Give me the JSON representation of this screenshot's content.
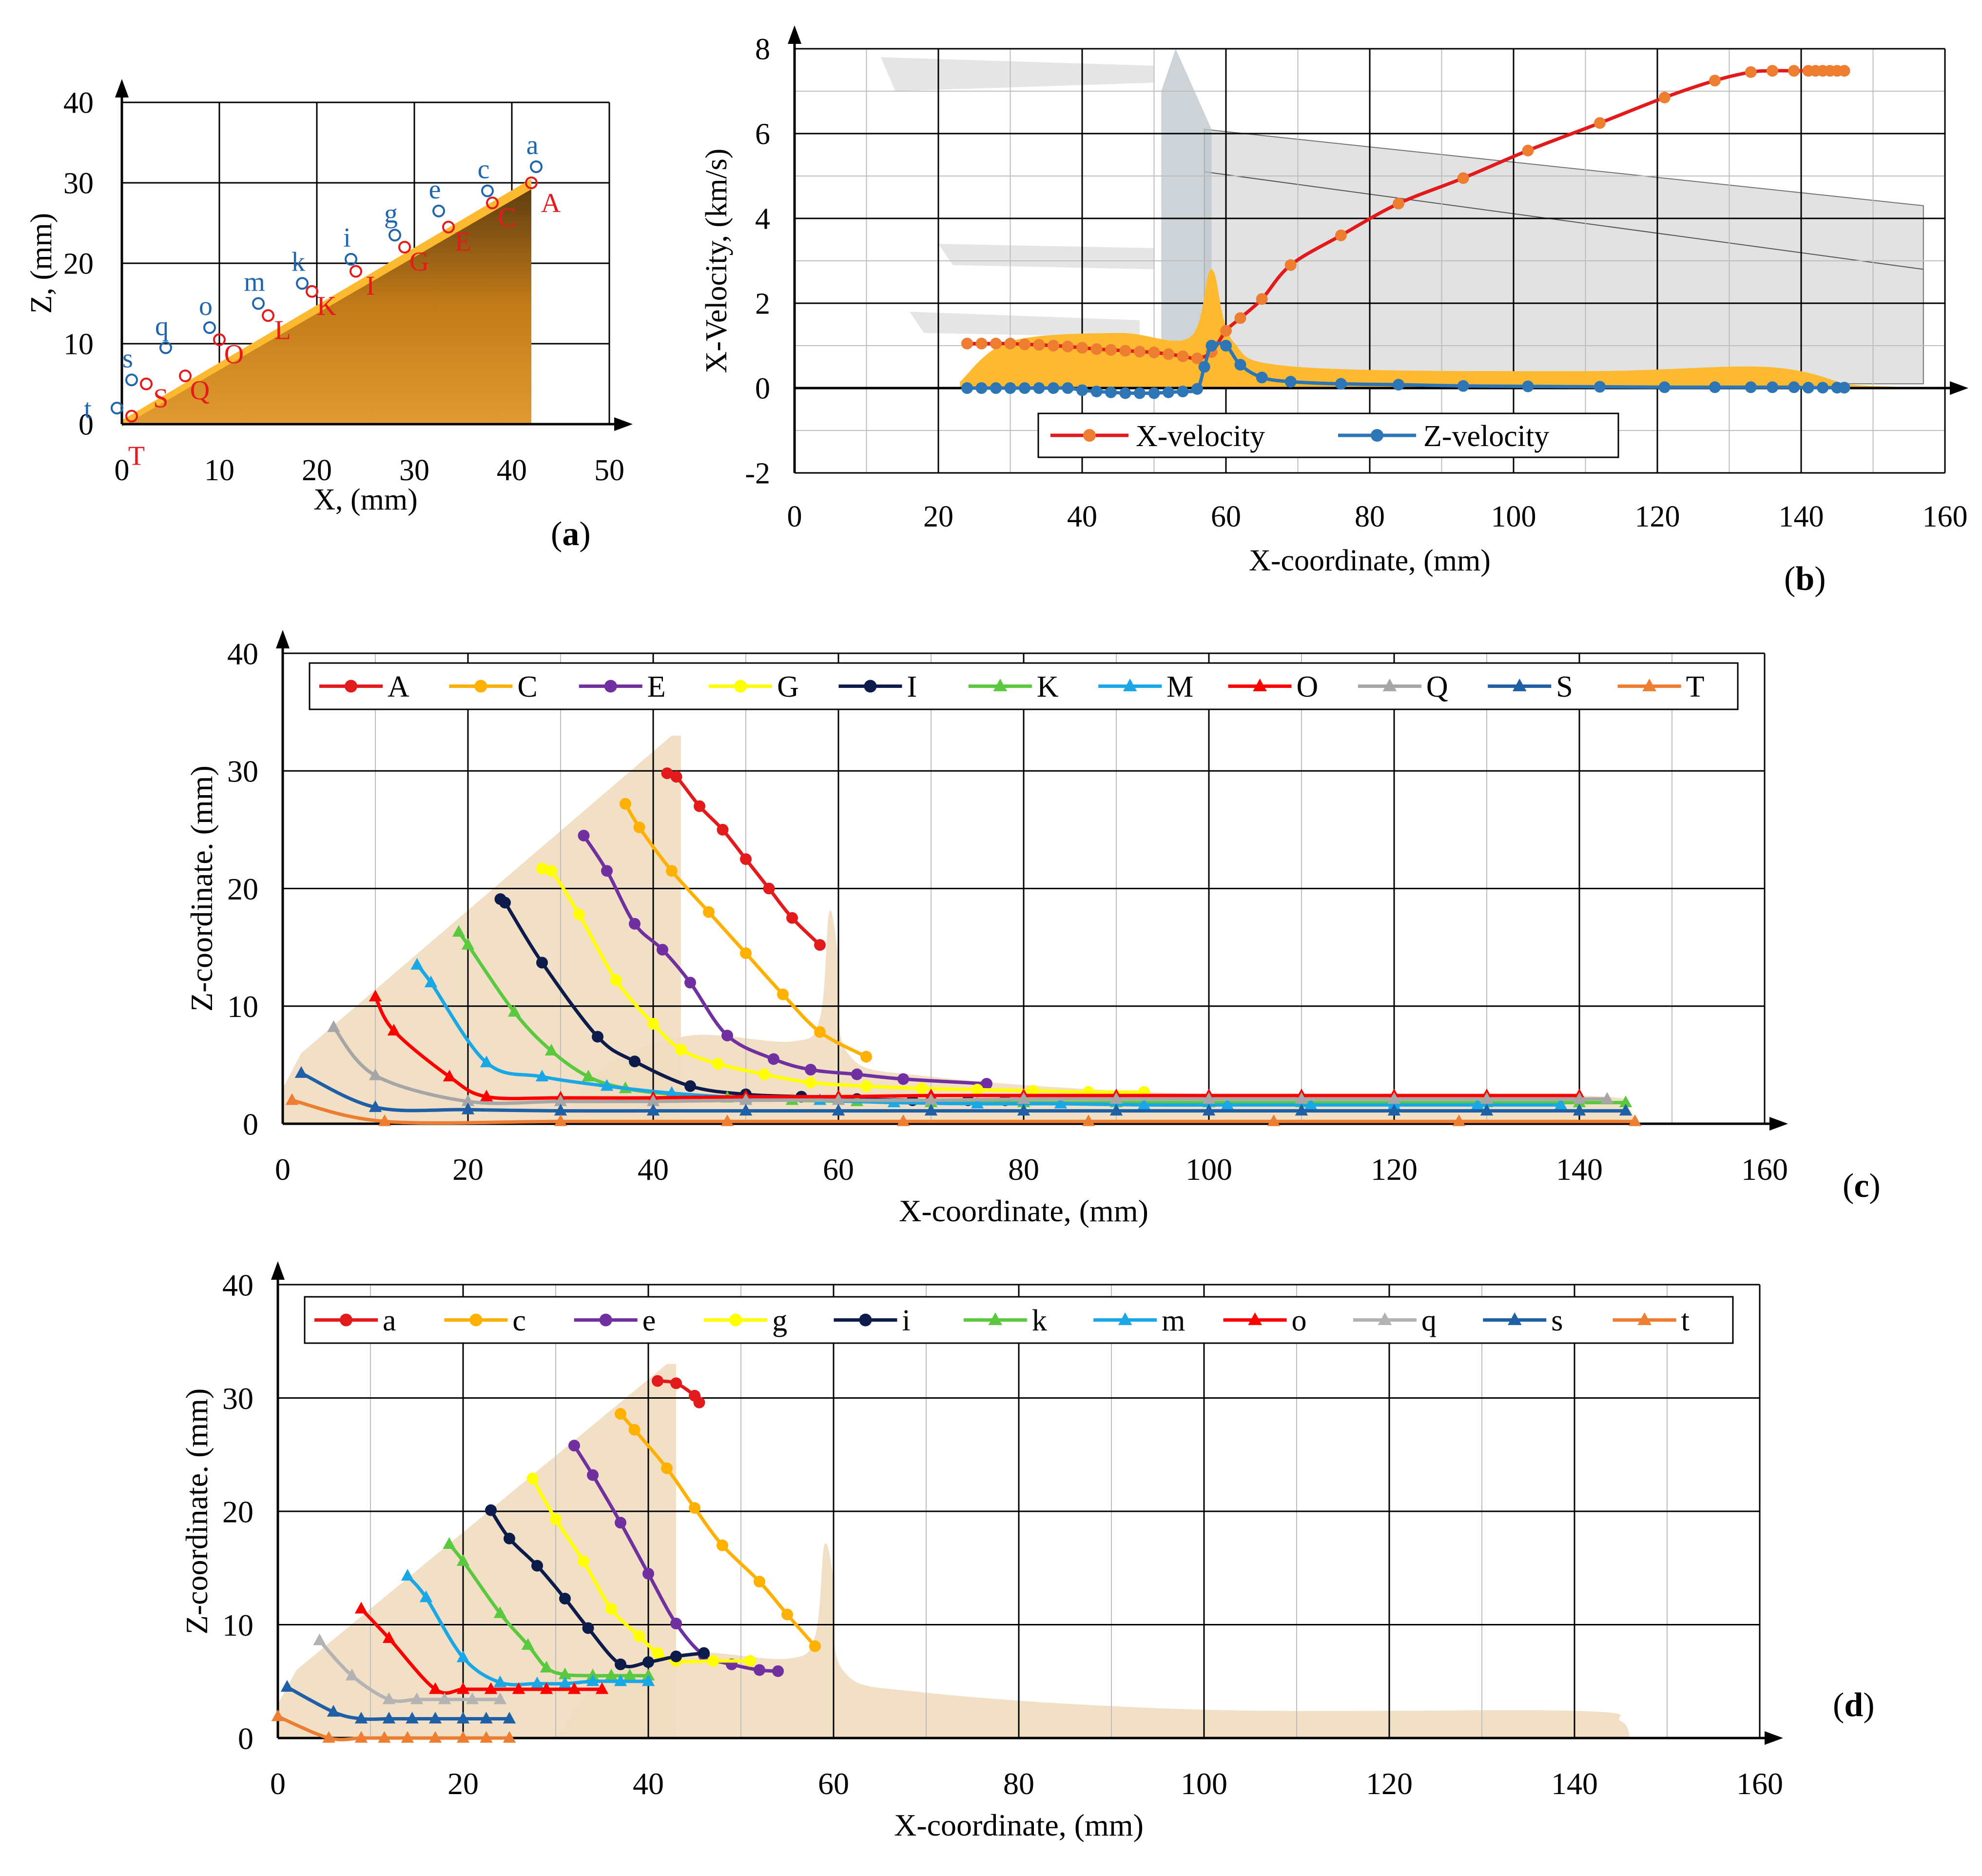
{
  "colors": {
    "grid_major": "#000000",
    "grid_minor": "#bdbdbd",
    "shape_fill": "#d68a18",
    "shape_light": "#f0dcc0",
    "ghost": "#d4d4d4",
    "orange_band": "#fdb930",
    "label_red": "#e41a1c",
    "label_blue": "#2166ac"
  },
  "panel_labels": {
    "a": "a",
    "b": "b",
    "c": "c",
    "d": "d"
  },
  "chart_data": [
    {
      "id": "a",
      "type": "scatter",
      "xlabel": "X, (mm)",
      "ylabel": "Z, (mm)",
      "xlim": [
        0,
        50
      ],
      "ylim": [
        0,
        40
      ],
      "xticks": [
        "0",
        "10",
        "20",
        "30",
        "40",
        "50"
      ],
      "yticks": [
        "0",
        "10",
        "20",
        "30",
        "40"
      ],
      "outline": {
        "x": [
          0,
          42,
          42,
          0
        ],
        "z": [
          0,
          30,
          0,
          0
        ]
      },
      "upper_points": [
        {
          "label": "a",
          "x": 42.5,
          "z": 32
        },
        {
          "label": "c",
          "x": 37.5,
          "z": 29
        },
        {
          "label": "e",
          "x": 32.5,
          "z": 26.5
        },
        {
          "label": "g",
          "x": 28,
          "z": 23.5
        },
        {
          "label": "i",
          "x": 23.5,
          "z": 20.5
        },
        {
          "label": "k",
          "x": 18.5,
          "z": 17.5
        },
        {
          "label": "m",
          "x": 14,
          "z": 15
        },
        {
          "label": "o",
          "x": 9,
          "z": 12
        },
        {
          "label": "q",
          "x": 4.5,
          "z": 9.5
        },
        {
          "label": "s",
          "x": 1,
          "z": 5.5
        },
        {
          "label": "t",
          "x": -0.5,
          "z": 2
        }
      ],
      "lower_points": [
        {
          "label": "A",
          "x": 42,
          "z": 30
        },
        {
          "label": "C",
          "x": 38,
          "z": 27.5
        },
        {
          "label": "E",
          "x": 33.5,
          "z": 24.5
        },
        {
          "label": "G",
          "x": 29,
          "z": 22
        },
        {
          "label": "I",
          "x": 24,
          "z": 19
        },
        {
          "label": "K",
          "x": 19.5,
          "z": 16.5
        },
        {
          "label": "L",
          "x": 15,
          "z": 13.5
        },
        {
          "label": "O",
          "x": 10,
          "z": 10.5
        },
        {
          "label": "Q",
          "x": 6.5,
          "z": 6
        },
        {
          "label": "S",
          "x": 2.5,
          "z": 5
        },
        {
          "label": "T",
          "x": 1,
          "z": 1
        }
      ]
    },
    {
      "id": "b",
      "type": "line",
      "xlabel": "X-coordinate, (mm)",
      "ylabel": "X-Velocity, (km/s)",
      "xlim": [
        0,
        160
      ],
      "ylim": [
        -2,
        8
      ],
      "xticks": [
        "0",
        "20",
        "40",
        "60",
        "80",
        "100",
        "120",
        "140",
        "160"
      ],
      "yticks": [
        "-2",
        "0",
        "2",
        "4",
        "6",
        "8"
      ],
      "series": [
        {
          "name": "X-velocity",
          "color": "#e31a1c",
          "marker_color": "#ed7d31",
          "x": [
            24,
            26,
            28,
            30,
            32,
            34,
            36,
            38,
            40,
            42,
            44,
            46,
            48,
            50,
            52,
            54,
            56,
            58,
            60,
            62,
            65,
            69,
            76,
            84,
            93,
            102,
            112,
            121,
            128,
            133,
            136,
            139,
            141,
            142,
            143,
            144,
            145,
            146
          ],
          "y": [
            1.05,
            1.05,
            1.05,
            1.05,
            1.03,
            1.02,
            1.0,
            0.98,
            0.95,
            0.92,
            0.9,
            0.88,
            0.86,
            0.84,
            0.8,
            0.75,
            0.7,
            0.85,
            1.35,
            1.65,
            2.1,
            2.9,
            3.6,
            4.35,
            4.95,
            5.6,
            6.25,
            6.85,
            7.25,
            7.45,
            7.48,
            7.48,
            7.48,
            7.48,
            7.48,
            7.48,
            7.48,
            7.48
          ]
        },
        {
          "name": "Z-velocity",
          "color": "#2e75b6",
          "marker_color": "#2e75b6",
          "x": [
            24,
            26,
            28,
            30,
            32,
            34,
            36,
            38,
            40,
            42,
            44,
            46,
            48,
            50,
            52,
            54,
            56,
            57,
            58,
            60,
            62,
            65,
            69,
            76,
            84,
            93,
            102,
            112,
            121,
            128,
            133,
            136,
            139,
            141,
            143,
            145,
            146
          ],
          "y": [
            0.0,
            0.0,
            0.0,
            0.0,
            0.0,
            0.0,
            0.0,
            0.0,
            -0.05,
            -0.08,
            -0.1,
            -0.12,
            -0.12,
            -0.12,
            -0.1,
            -0.08,
            -0.02,
            0.5,
            1.0,
            1.0,
            0.55,
            0.25,
            0.15,
            0.1,
            0.08,
            0.05,
            0.04,
            0.03,
            0.02,
            0.02,
            0.02,
            0.02,
            0.02,
            0.01,
            0.01,
            0.01,
            0.01
          ]
        }
      ]
    },
    {
      "id": "c",
      "type": "line",
      "xlabel": "X-coordinate, (mm)",
      "ylabel": "Z-coordinate. (mm)",
      "xlim": [
        0,
        160
      ],
      "ylim": [
        0,
        40
      ],
      "xticks": [
        "0",
        "20",
        "40",
        "60",
        "80",
        "100",
        "120",
        "140",
        "160"
      ],
      "yticks": [
        "0",
        "10",
        "20",
        "30",
        "40"
      ],
      "series": [
        {
          "name": "A",
          "color": "#e31a1c",
          "marker": "circle",
          "x": [
            41.5,
            42.5,
            45,
            47.5,
            50,
            52.5,
            55,
            58
          ],
          "y": [
            29.8,
            29.5,
            27,
            25,
            22.5,
            20,
            17.5,
            15.2
          ]
        },
        {
          "name": "C",
          "color": "#ffb000",
          "marker": "circle",
          "x": [
            37,
            38.5,
            42,
            46,
            50,
            54,
            58,
            63
          ],
          "y": [
            27.2,
            25.2,
            21.5,
            18,
            14.5,
            11,
            7.8,
            5.7
          ]
        },
        {
          "name": "E",
          "color": "#7030a0",
          "marker": "circle",
          "x": [
            32.5,
            35,
            38,
            41,
            44,
            48,
            53,
            57,
            62,
            67,
            76
          ],
          "y": [
            24.5,
            21.5,
            17,
            14.8,
            12,
            7.5,
            5.5,
            4.6,
            4.2,
            3.8,
            3.4
          ]
        },
        {
          "name": "G",
          "color": "#ffff00",
          "marker": "circle",
          "x": [
            28,
            29,
            32,
            36,
            40,
            43,
            47,
            52,
            57,
            63,
            69,
            75,
            81,
            87,
            93
          ],
          "y": [
            21.7,
            21.5,
            17.8,
            12.2,
            8.5,
            6.3,
            5.1,
            4.2,
            3.5,
            3.2,
            3.0,
            2.9,
            2.8,
            2.7,
            2.7
          ]
        },
        {
          "name": "I",
          "color": "#0d1b4b",
          "marker": "circle",
          "x": [
            23.5,
            24,
            28,
            34,
            38,
            44,
            50,
            56,
            62,
            68,
            74,
            78
          ],
          "y": [
            19.1,
            18.8,
            13.7,
            7.4,
            5.3,
            3.2,
            2.5,
            2.3,
            2.1,
            2.0,
            2.0,
            2.0
          ]
        },
        {
          "name": "K",
          "color": "#5bc940",
          "marker": "triangle",
          "x": [
            19,
            20,
            25,
            29,
            33,
            37,
            42,
            48,
            55,
            62,
            70,
            80,
            90,
            100,
            110,
            120,
            130,
            140,
            145
          ],
          "y": [
            16.3,
            15.2,
            9.5,
            6.2,
            4.0,
            3.0,
            2.5,
            2.2,
            2.0,
            1.9,
            1.8,
            1.8,
            1.8,
            1.8,
            1.8,
            1.8,
            1.8,
            1.8,
            1.8
          ]
        },
        {
          "name": "M",
          "color": "#1aa7e6",
          "marker": "triangle",
          "x": [
            14.5,
            16,
            22,
            28,
            35,
            42,
            50,
            58,
            66,
            75,
            84,
            93,
            102,
            111,
            120,
            129,
            138
          ],
          "y": [
            13.5,
            12,
            5.2,
            4.0,
            3.2,
            2.6,
            2.2,
            2.0,
            1.8,
            1.7,
            1.7,
            1.6,
            1.6,
            1.6,
            1.6,
            1.6,
            1.6
          ]
        },
        {
          "name": "O",
          "color": "#ff0000",
          "marker": "triangle",
          "x": [
            10,
            12,
            18,
            22,
            30,
            40,
            50,
            60,
            70,
            80,
            90,
            100,
            110,
            120,
            130,
            140
          ],
          "y": [
            10.8,
            7.9,
            4.0,
            2.3,
            2.2,
            2.2,
            2.3,
            2.3,
            2.4,
            2.4,
            2.4,
            2.4,
            2.4,
            2.4,
            2.4,
            2.4
          ]
        },
        {
          "name": "Q",
          "color": "#a6a6a6",
          "marker": "triangle",
          "x": [
            5.5,
            10,
            20,
            30,
            40,
            50,
            60,
            70,
            80,
            90,
            100,
            110,
            120,
            130,
            140,
            143
          ],
          "y": [
            8.2,
            4.1,
            1.9,
            1.9,
            1.9,
            2.0,
            2.0,
            2.0,
            2.1,
            2.1,
            2.1,
            2.1,
            2.1,
            2.1,
            2.1,
            2.1
          ]
        },
        {
          "name": "S",
          "color": "#1f5fa6",
          "marker": "triangle",
          "x": [
            2,
            10,
            20,
            30,
            40,
            50,
            60,
            70,
            80,
            90,
            100,
            110,
            120,
            130,
            140,
            145
          ],
          "y": [
            4.3,
            1.4,
            1.2,
            1.1,
            1.1,
            1.1,
            1.1,
            1.1,
            1.1,
            1.1,
            1.1,
            1.1,
            1.1,
            1.1,
            1.1,
            1.1
          ]
        },
        {
          "name": "T",
          "color": "#ed7d31",
          "marker": "triangle",
          "x": [
            1,
            11,
            30,
            48,
            67,
            87,
            107,
            127,
            146
          ],
          "y": [
            2.0,
            0.2,
            0.2,
            0.2,
            0.2,
            0.2,
            0.2,
            0.2,
            0.2
          ]
        }
      ]
    },
    {
      "id": "d",
      "type": "line",
      "xlabel": "X-coordinate, (mm)",
      "ylabel": "Z-coordinate. (mm)",
      "xlim": [
        0,
        160
      ],
      "ylim": [
        0,
        40
      ],
      "xticks": [
        "0",
        "20",
        "40",
        "60",
        "80",
        "100",
        "120",
        "140",
        "160"
      ],
      "yticks": [
        "0",
        "10",
        "20",
        "30",
        "40"
      ],
      "series": [
        {
          "name": "a",
          "color": "#e31a1c",
          "marker": "circle",
          "x": [
            41,
            43,
            45,
            45.5
          ],
          "y": [
            31.5,
            31.3,
            30.2,
            29.6
          ]
        },
        {
          "name": "c",
          "color": "#ffb000",
          "marker": "circle",
          "x": [
            37,
            38.5,
            42,
            45,
            48,
            52,
            55,
            58
          ],
          "y": [
            28.6,
            27.2,
            23.8,
            20.3,
            17.0,
            13.8,
            10.9,
            8.1
          ]
        },
        {
          "name": "e",
          "color": "#7030a0",
          "marker": "circle",
          "x": [
            32,
            34,
            37,
            40,
            43,
            46,
            49,
            52,
            54
          ],
          "y": [
            25.8,
            23.2,
            19.0,
            14.5,
            10.1,
            7.3,
            6.5,
            6.0,
            5.9
          ]
        },
        {
          "name": "g",
          "color": "#ffff00",
          "marker": "circle",
          "x": [
            27.5,
            30,
            33,
            36,
            39,
            41,
            43,
            47,
            51
          ],
          "y": [
            22.9,
            19.3,
            15.6,
            11.4,
            9.0,
            7.5,
            6.8,
            6.8,
            6.8
          ]
        },
        {
          "name": "i",
          "color": "#0d1b4b",
          "marker": "circle",
          "x": [
            23,
            25,
            28,
            31,
            33.5,
            37,
            40,
            43,
            46
          ],
          "y": [
            20.1,
            17.6,
            15.2,
            12.3,
            9.7,
            6.5,
            6.7,
            7.2,
            7.5
          ]
        },
        {
          "name": "k",
          "color": "#5bc940",
          "marker": "triangle",
          "x": [
            18.5,
            20,
            24,
            27,
            29,
            31,
            34,
            36,
            38,
            40
          ],
          "y": [
            17.1,
            15.6,
            11.0,
            8.2,
            6.2,
            5.6,
            5.5,
            5.5,
            5.5,
            5.5
          ]
        },
        {
          "name": "m",
          "color": "#1aa7e6",
          "marker": "triangle",
          "x": [
            14,
            16,
            20,
            24,
            28,
            31,
            34,
            37,
            40
          ],
          "y": [
            14.3,
            12.4,
            7.1,
            4.9,
            4.8,
            4.8,
            5.0,
            5.0,
            5.0
          ]
        },
        {
          "name": "o",
          "color": "#ff0000",
          "marker": "triangle",
          "x": [
            9,
            12,
            17,
            20,
            23,
            26,
            29,
            32,
            35
          ],
          "y": [
            11.4,
            8.8,
            4.3,
            4.3,
            4.3,
            4.3,
            4.3,
            4.3,
            4.3
          ]
        },
        {
          "name": "q",
          "color": "#b3b3b3",
          "marker": "triangle",
          "x": [
            4.5,
            8,
            12,
            15,
            18,
            21,
            24
          ],
          "y": [
            8.6,
            5.5,
            3.4,
            3.4,
            3.4,
            3.4,
            3.4
          ]
        },
        {
          "name": "s",
          "color": "#1f5fa6",
          "marker": "triangle",
          "x": [
            1,
            6,
            9,
            12,
            14.5,
            17,
            20,
            22.5,
            25
          ],
          "y": [
            4.5,
            2.3,
            1.7,
            1.7,
            1.7,
            1.7,
            1.7,
            1.7,
            1.7
          ]
        },
        {
          "name": "t",
          "color": "#ed7d31",
          "marker": "triangle",
          "x": [
            0,
            5.5,
            9,
            11.5,
            14,
            17,
            20,
            22.5,
            25
          ],
          "y": [
            1.9,
            0.0,
            0.0,
            0.0,
            0.0,
            0.0,
            0.0,
            0.0,
            0.0
          ]
        }
      ]
    }
  ]
}
